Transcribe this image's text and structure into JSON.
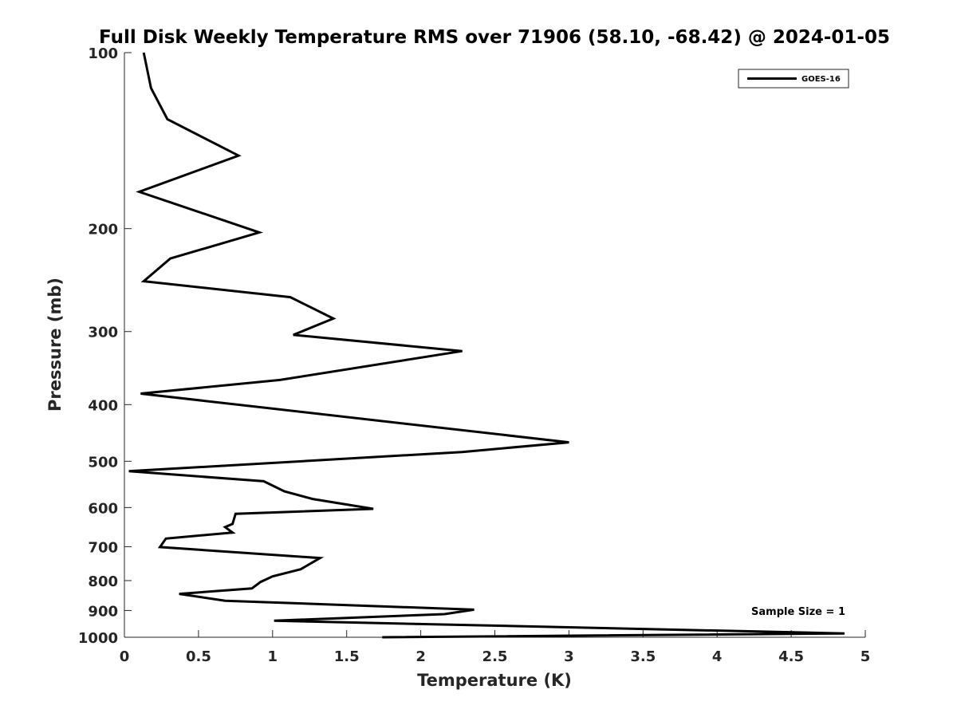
{
  "chart_data": {
    "type": "line",
    "title": "Full Disk Weekly Temperature RMS over 71906 (58.10, -68.42) @ 2024-01-05",
    "xlabel": "Temperature (K)",
    "ylabel": "Pressure (mb)",
    "xlim": [
      0,
      5
    ],
    "ylim": [
      100,
      1000
    ],
    "y_scale": "log",
    "y_reversed": true,
    "x_ticks": [
      "0",
      "0.5",
      "1",
      "1.5",
      "2",
      "2.5",
      "3",
      "3.5",
      "4",
      "4.5",
      "5"
    ],
    "y_ticks": [
      "100",
      "200",
      "300",
      "400",
      "500",
      "600",
      "700",
      "800",
      "900",
      "1000"
    ],
    "legend_position": "top-right",
    "grid": false,
    "annotation": "Sample Size = 1",
    "series": [
      {
        "name": "GOES-16",
        "color": "#000000",
        "x": [
          0.13,
          0.18,
          0.29,
          0.77,
          0.1,
          0.91,
          0.31,
          0.13,
          1.12,
          1.41,
          1.14,
          2.28,
          1.05,
          0.11,
          3.0,
          2.28,
          0.03,
          0.94,
          1.08,
          1.27,
          1.68,
          0.75,
          0.73,
          0.68,
          0.73,
          0.28,
          0.24,
          1.32,
          1.19,
          1.0,
          0.92,
          0.86,
          0.37,
          0.68,
          2.36,
          2.16,
          1.01,
          4.86,
          1.74
        ],
        "y": [
          100,
          115,
          130,
          150,
          173,
          203,
          225,
          246,
          262,
          285,
          304,
          324,
          363,
          383,
          464,
          482,
          520,
          541,
          563,
          580,
          603,
          615,
          640,
          648,
          662,
          678,
          701,
          732,
          765,
          787,
          804,
          825,
          843,
          866,
          897,
          913,
          937,
          985,
          1000
        ]
      }
    ]
  }
}
